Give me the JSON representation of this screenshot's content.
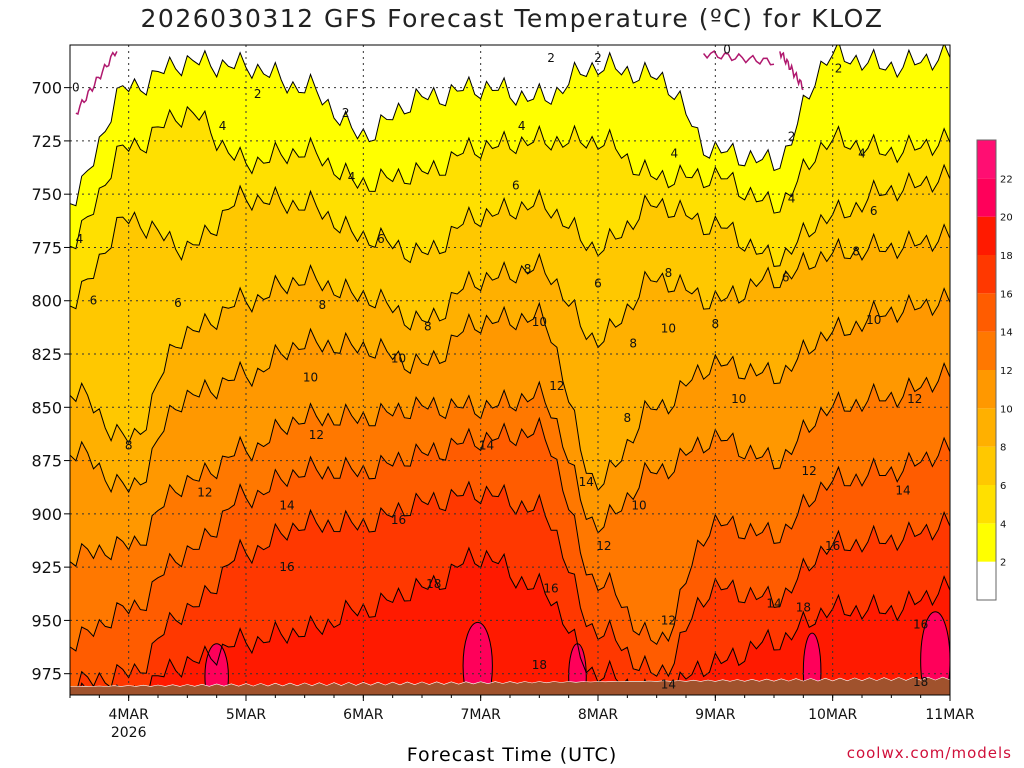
{
  "chart_data": {
    "type": "heatmap",
    "title": "2026030312 GFS Forecast Temperature (ºC) for KLOZ",
    "xlabel": "Forecast Time (UTC)",
    "ylabel": "Pressure (hPa)",
    "credit": "coolwx.com/models",
    "x_ticks": [
      {
        "label": "4MAR",
        "sub": "2026",
        "day": 1
      },
      {
        "label": "5MAR",
        "sub": "",
        "day": 2
      },
      {
        "label": "6MAR",
        "sub": "",
        "day": 3
      },
      {
        "label": "7MAR",
        "sub": "",
        "day": 4
      },
      {
        "label": "8MAR",
        "sub": "",
        "day": 5
      },
      {
        "label": "9MAR",
        "sub": "",
        "day": 6
      },
      {
        "label": "10MAR",
        "sub": "",
        "day": 7
      },
      {
        "label": "11MAR",
        "sub": "",
        "day": 8
      }
    ],
    "xlim_days": [
      0.5,
      8.0
    ],
    "y_ticks": [
      700,
      725,
      750,
      775,
      800,
      825,
      850,
      875,
      900,
      925,
      950,
      975
    ],
    "ylim": [
      680,
      985
    ],
    "ground_level_hPa": 981,
    "colorbar": {
      "levels": [
        2,
        4,
        6,
        8,
        10,
        12,
        14,
        16,
        18,
        20,
        22
      ],
      "colors": [
        "#ffffff",
        "#ffff00",
        "#ffe000",
        "#ffc800",
        "#ffb000",
        "#ff9800",
        "#ff7800",
        "#ff5c00",
        "#ff3800",
        "#ff1a00",
        "#ff005a",
        "#ff0e72"
      ]
    },
    "series": [
      {
        "name": "2C isotherm (hPa)",
        "x": [
          0.5,
          1.0,
          1.5,
          2.0,
          2.5,
          3.0,
          3.5,
          4.0,
          4.5,
          5.0,
          5.5,
          6.0,
          6.5,
          7.0,
          7.5,
          8.0
        ],
        "values": [
          752,
          700,
          688,
          690,
          700,
          722,
          705,
          700,
          705,
          690,
          695,
          730,
          735,
          685,
          690,
          685
        ]
      },
      {
        "name": "4C isotherm (hPa)",
        "x": [
          0.5,
          1.0,
          1.5,
          2.0,
          2.5,
          3.0,
          3.5,
          4.0,
          4.5,
          5.0,
          5.5,
          6.0,
          6.5,
          7.0,
          7.5,
          8.0
        ],
        "values": [
          772,
          728,
          712,
          735,
          730,
          745,
          740,
          728,
          725,
          725,
          742,
          742,
          755,
          725,
          730,
          725
        ]
      },
      {
        "name": "6C isotherm (hPa)",
        "x": [
          0.5,
          1.0,
          1.5,
          2.0,
          2.5,
          3.0,
          3.5,
          4.0,
          4.5,
          5.0,
          5.5,
          6.0,
          6.5,
          7.0,
          7.5,
          8.0
        ],
        "values": [
          800,
          762,
          775,
          752,
          755,
          770,
          778,
          760,
          755,
          775,
          755,
          765,
          780,
          760,
          748,
          742
        ]
      },
      {
        "name": "8C isotherm (hPa)",
        "x": [
          0.5,
          1.0,
          1.5,
          2.0,
          2.5,
          3.0,
          3.5,
          4.0,
          4.5,
          5.0,
          5.5,
          6.0,
          6.5,
          7.0,
          7.5,
          8.0
        ],
        "values": [
          842,
          865,
          815,
          800,
          790,
          798,
          810,
          790,
          785,
          818,
          790,
          800,
          790,
          778,
          775,
          770
        ]
      },
      {
        "name": "10C isotherm (hPa)",
        "x": [
          0.5,
          1.0,
          1.5,
          2.0,
          2.5,
          3.0,
          3.5,
          4.0,
          4.5,
          5.0,
          5.5,
          6.0,
          6.5,
          7.0,
          7.5,
          8.0
        ],
        "values": [
          870,
          888,
          845,
          835,
          820,
          822,
          830,
          810,
          808,
          885,
          850,
          830,
          835,
          815,
          805,
          800
        ]
      },
      {
        "name": "12C isotherm (hPa)",
        "x": [
          0.5,
          1.0,
          1.5,
          2.0,
          2.5,
          3.0,
          3.5,
          4.0,
          4.5,
          5.0,
          5.5,
          6.0,
          6.5,
          7.0,
          7.5,
          8.0
        ],
        "values": [
          920,
          915,
          885,
          870,
          855,
          855,
          850,
          850,
          845,
          905,
          880,
          865,
          875,
          850,
          845,
          835
        ]
      },
      {
        "name": "14C isotherm (hPa)",
        "x": [
          0.5,
          1.0,
          1.5,
          2.0,
          2.5,
          3.0,
          3.5,
          4.0,
          4.5,
          5.0,
          5.5,
          6.0,
          6.5,
          7.0,
          7.5,
          8.0
        ],
        "values": [
          960,
          945,
          918,
          892,
          880,
          880,
          872,
          865,
          862,
          932,
          960,
          905,
          910,
          885,
          880,
          870
        ]
      },
      {
        "name": "16C isotherm (hPa)",
        "x": [
          0.5,
          1.0,
          1.5,
          2.0,
          2.5,
          3.0,
          3.5,
          4.0,
          4.5,
          5.0,
          5.5,
          6.0,
          6.5,
          7.0,
          7.5,
          8.0
        ],
        "values": [
          980,
          975,
          945,
          918,
          905,
          905,
          895,
          890,
          898,
          955,
          975,
          935,
          940,
          915,
          912,
          905
        ]
      },
      {
        "name": "18C isotherm (hPa)",
        "x": [
          0.5,
          1.0,
          1.5,
          2.0,
          2.5,
          3.0,
          3.5,
          4.0,
          4.5,
          5.0,
          5.5,
          6.0,
          6.5,
          7.0,
          7.5,
          8.0
        ],
        "values": [
          985,
          985,
          970,
          960,
          955,
          945,
          935,
          920,
          935,
          975,
          985,
          970,
          960,
          945,
          945,
          935
        ]
      }
    ],
    "annotations": [
      {
        "text": "0",
        "day": 0.55,
        "p": 700
      },
      {
        "text": "2",
        "day": 2.1,
        "p": 703
      },
      {
        "text": "2",
        "day": 2.85,
        "p": 712
      },
      {
        "text": "2",
        "day": 4.6,
        "p": 686
      },
      {
        "text": "2",
        "day": 5.0,
        "p": 686
      },
      {
        "text": "0",
        "day": 6.1,
        "p": 682
      },
      {
        "text": "2",
        "day": 6.65,
        "p": 723
      },
      {
        "text": "2",
        "day": 7.05,
        "p": 691
      },
      {
        "text": "4",
        "day": 1.8,
        "p": 718
      },
      {
        "text": "4",
        "day": 2.9,
        "p": 742
      },
      {
        "text": "4",
        "day": 4.35,
        "p": 718
      },
      {
        "text": "4",
        "day": 5.65,
        "p": 731
      },
      {
        "text": "4",
        "day": 6.65,
        "p": 752
      },
      {
        "text": "4",
        "day": 7.25,
        "p": 731
      },
      {
        "text": "4",
        "day": 0.58,
        "p": 771
      },
      {
        "text": "6",
        "day": 0.7,
        "p": 800
      },
      {
        "text": "6",
        "day": 1.42,
        "p": 801
      },
      {
        "text": "6",
        "day": 3.15,
        "p": 771
      },
      {
        "text": "6",
        "day": 4.3,
        "p": 746
      },
      {
        "text": "6",
        "day": 5.0,
        "p": 792
      },
      {
        "text": "6",
        "day": 6.6,
        "p": 789
      },
      {
        "text": "6",
        "day": 7.35,
        "p": 758
      },
      {
        "text": "8",
        "day": 1.0,
        "p": 868
      },
      {
        "text": "8",
        "day": 2.65,
        "p": 802
      },
      {
        "text": "8",
        "day": 3.55,
        "p": 812
      },
      {
        "text": "8",
        "day": 4.4,
        "p": 785
      },
      {
        "text": "8",
        "day": 5.3,
        "p": 820
      },
      {
        "text": "8",
        "day": 5.25,
        "p": 855
      },
      {
        "text": "8",
        "day": 5.6,
        "p": 787
      },
      {
        "text": "8",
        "day": 6.0,
        "p": 811
      },
      {
        "text": "8",
        "day": 7.2,
        "p": 777
      },
      {
        "text": "10",
        "day": 2.55,
        "p": 836
      },
      {
        "text": "10",
        "day": 3.3,
        "p": 827
      },
      {
        "text": "10",
        "day": 4.5,
        "p": 810
      },
      {
        "text": "10",
        "day": 5.6,
        "p": 813
      },
      {
        "text": "10",
        "day": 6.2,
        "p": 846
      },
      {
        "text": "10",
        "day": 5.35,
        "p": 896
      },
      {
        "text": "10",
        "day": 7.35,
        "p": 809
      },
      {
        "text": "12",
        "day": 1.65,
        "p": 890
      },
      {
        "text": "12",
        "day": 2.6,
        "p": 863
      },
      {
        "text": "12",
        "day": 4.65,
        "p": 840
      },
      {
        "text": "12",
        "day": 5.05,
        "p": 915
      },
      {
        "text": "12",
        "day": 5.6,
        "p": 950
      },
      {
        "text": "12",
        "day": 6.8,
        "p": 880
      },
      {
        "text": "12",
        "day": 7.7,
        "p": 846
      },
      {
        "text": "14",
        "day": 2.35,
        "p": 896
      },
      {
        "text": "14",
        "day": 4.05,
        "p": 868
      },
      {
        "text": "14",
        "day": 4.9,
        "p": 885
      },
      {
        "text": "14",
        "day": 5.6,
        "p": 980
      },
      {
        "text": "14",
        "day": 6.5,
        "p": 942
      },
      {
        "text": "14",
        "day": 7.6,
        "p": 889
      },
      {
        "text": "16",
        "day": 2.35,
        "p": 925
      },
      {
        "text": "16",
        "day": 3.3,
        "p": 903
      },
      {
        "text": "16",
        "day": 4.6,
        "p": 935
      },
      {
        "text": "16",
        "day": 7.0,
        "p": 915
      },
      {
        "text": "16",
        "day": 7.75,
        "p": 952
      },
      {
        "text": "18",
        "day": 3.6,
        "p": 933
      },
      {
        "text": "18",
        "day": 4.5,
        "p": 971
      },
      {
        "text": "18",
        "day": 6.75,
        "p": 944
      },
      {
        "text": "18",
        "day": 7.75,
        "p": 979
      }
    ]
  }
}
